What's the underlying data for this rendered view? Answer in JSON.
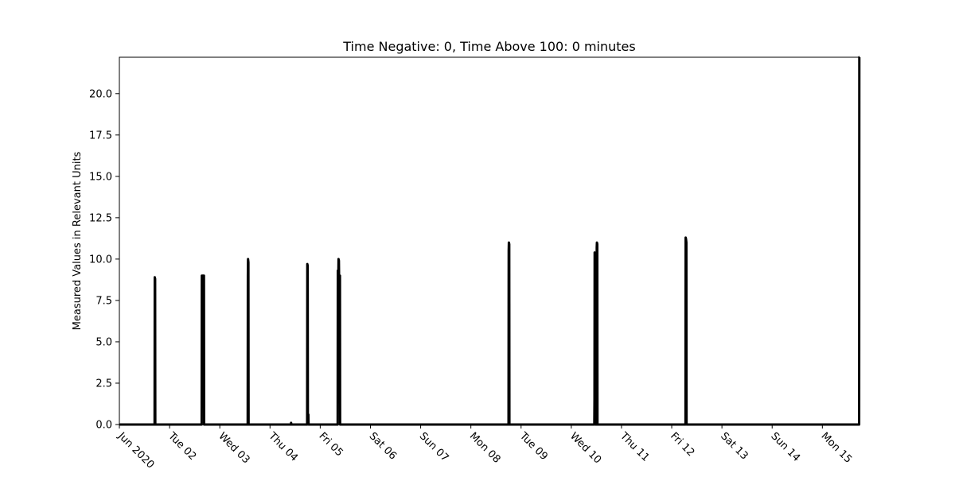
{
  "chart_data": {
    "type": "line",
    "title": "Time Negative: 0, Time Above 100: 0 minutes",
    "xlabel": "",
    "ylabel": "Measured Values in Relevant Units",
    "x_range": [
      "2020-06-01T00:00",
      "2020-06-15T17:45"
    ],
    "ylim": [
      0,
      22.2
    ],
    "y_ticks": [
      0.0,
      2.5,
      5.0,
      7.5,
      10.0,
      12.5,
      15.0,
      17.5,
      20.0
    ],
    "y_tick_labels": [
      "0.0",
      "2.5",
      "5.0",
      "7.5",
      "10.0",
      "12.5",
      "15.0",
      "17.5",
      "20.0"
    ],
    "x_ticks": [
      "2020-06-01",
      "2020-06-02",
      "2020-06-03",
      "2020-06-04",
      "2020-06-05",
      "2020-06-06",
      "2020-06-07",
      "2020-06-08",
      "2020-06-09",
      "2020-06-10",
      "2020-06-11",
      "2020-06-12",
      "2020-06-13",
      "2020-06-14",
      "2020-06-15"
    ],
    "x_tick_labels": [
      "Jun 2020",
      "Tue 02",
      "Wed 03",
      "Thu 04",
      "Fri 05",
      "Sat 06",
      "Sun 07",
      "Mon 08",
      "Tue 09",
      "Wed 10",
      "Thu 11",
      "Fri 12",
      "Sat 13",
      "Sun 14",
      "Mon 15"
    ],
    "grid": false,
    "line_color": "#000000",
    "series": [
      {
        "points": [
          [
            "2020-06-01T00:00",
            0
          ],
          [
            "2020-06-01T16:50",
            0
          ],
          [
            "2020-06-01T16:55",
            8.9
          ],
          [
            "2020-06-01T17:05",
            8.8
          ],
          [
            "2020-06-01T17:10",
            0
          ],
          [
            "2020-06-02T15:20",
            0
          ],
          [
            "2020-06-02T15:25",
            9.0
          ],
          [
            "2020-06-02T16:25",
            9.0
          ],
          [
            "2020-06-02T16:30",
            0
          ],
          [
            "2020-06-03T13:20",
            0
          ],
          [
            "2020-06-03T13:25",
            9.0
          ],
          [
            "2020-06-03T13:30",
            10.0
          ],
          [
            "2020-06-03T13:40",
            9.8
          ],
          [
            "2020-06-03T13:45",
            0
          ],
          [
            "2020-06-04T10:00",
            0
          ],
          [
            "2020-06-04T10:05",
            0.1
          ],
          [
            "2020-06-04T10:10",
            0
          ],
          [
            "2020-06-04T17:45",
            0
          ],
          [
            "2020-06-04T17:50",
            9.7
          ],
          [
            "2020-06-04T18:00",
            9.6
          ],
          [
            "2020-06-04T18:05",
            0.6
          ],
          [
            "2020-06-04T18:20",
            0.6
          ],
          [
            "2020-06-04T18:25",
            0
          ],
          [
            "2020-06-05T08:20",
            0
          ],
          [
            "2020-06-05T08:25",
            9.3
          ],
          [
            "2020-06-05T08:40",
            9.1
          ],
          [
            "2020-06-05T08:45",
            10.0
          ],
          [
            "2020-06-05T08:55",
            9.9
          ],
          [
            "2020-06-05T09:00",
            9.0
          ],
          [
            "2020-06-05T09:25",
            9.0
          ],
          [
            "2020-06-05T09:30",
            0
          ],
          [
            "2020-06-08T18:00",
            0
          ],
          [
            "2020-06-08T18:05",
            10.5
          ],
          [
            "2020-06-08T18:10",
            11.0
          ],
          [
            "2020-06-08T18:20",
            10.9
          ],
          [
            "2020-06-08T18:25",
            0
          ],
          [
            "2020-06-10T11:00",
            0
          ],
          [
            "2020-06-10T11:05",
            1.5
          ],
          [
            "2020-06-10T11:10",
            10.4
          ],
          [
            "2020-06-10T11:25",
            10.3
          ],
          [
            "2020-06-10T11:30",
            0
          ],
          [
            "2020-06-10T12:05",
            0
          ],
          [
            "2020-06-10T12:10",
            10.7
          ],
          [
            "2020-06-10T12:15",
            11.0
          ],
          [
            "2020-06-10T12:25",
            10.9
          ],
          [
            "2020-06-10T12:30",
            0
          ],
          [
            "2020-06-12T06:35",
            0
          ],
          [
            "2020-06-12T06:40",
            11.3
          ],
          [
            "2020-06-12T06:50",
            11.2
          ],
          [
            "2020-06-12T07:00",
            11.0
          ],
          [
            "2020-06-12T07:05",
            0
          ],
          [
            "2020-06-15T17:35",
            0
          ],
          [
            "2020-06-15T17:40",
            22.2
          ],
          [
            "2020-06-15T17:45",
            22.2
          ]
        ]
      }
    ]
  }
}
